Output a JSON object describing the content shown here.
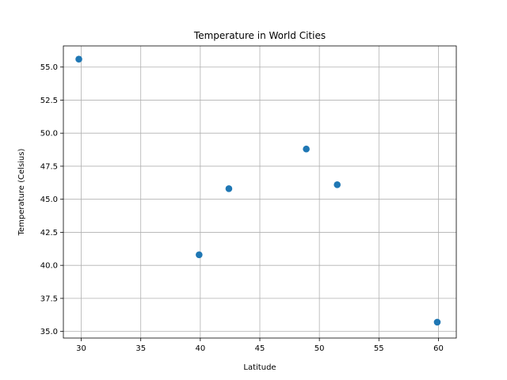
{
  "chart_data": {
    "type": "scatter",
    "title": "Temperature in World Cities",
    "xlabel": "Latitude",
    "ylabel": "Temperature (Celsius)",
    "xlim": [
      28.5,
      61.5
    ],
    "ylim": [
      34.5,
      56.6
    ],
    "x_ticks": [
      30,
      35,
      40,
      45,
      50,
      55,
      60
    ],
    "y_ticks": [
      35.0,
      37.5,
      40.0,
      42.5,
      45.0,
      47.5,
      50.0,
      52.5,
      55.0
    ],
    "x_tick_labels": [
      "30",
      "35",
      "40",
      "45",
      "50",
      "55",
      "60"
    ],
    "y_tick_labels": [
      "35.0",
      "37.5",
      "40.0",
      "42.5",
      "45.0",
      "47.5",
      "50.0",
      "52.5",
      "55.0"
    ],
    "grid": true,
    "marker_color": "#1f77b4",
    "points": [
      {
        "x": 29.8,
        "y": 55.6
      },
      {
        "x": 39.9,
        "y": 40.8
      },
      {
        "x": 42.4,
        "y": 45.8
      },
      {
        "x": 48.9,
        "y": 48.8
      },
      {
        "x": 51.5,
        "y": 46.1
      },
      {
        "x": 59.9,
        "y": 35.7
      }
    ]
  }
}
